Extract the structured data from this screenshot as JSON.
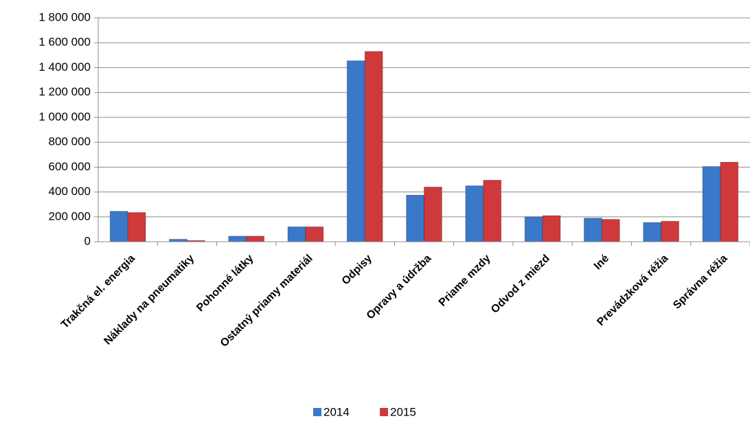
{
  "chart_data": {
    "type": "bar",
    "categories": [
      "Trakčná el. energia",
      "Náklady na pneumatiky",
      "Pohonné látky",
      "Ostatný priamy materiál",
      "Odpisy",
      "Opravy a údržba",
      "Priame mzdy",
      "Odvod z miezd",
      "Iné",
      "Prevádzková réžia",
      "Správna réžia"
    ],
    "series": [
      {
        "name": "2014",
        "color": "#3a78c9",
        "values": [
          245000,
          20000,
          45000,
          120000,
          1455000,
          375000,
          450000,
          200000,
          190000,
          155000,
          605000
        ]
      },
      {
        "name": "2015",
        "color": "#d0393b",
        "values": [
          235000,
          10000,
          45000,
          120000,
          1530000,
          440000,
          495000,
          210000,
          180000,
          165000,
          640000
        ]
      }
    ],
    "ylim": [
      0,
      1800000
    ],
    "yticks": [
      0,
      {
        "value": 200000,
        "label": "200 000"
      },
      {
        "value": 400000,
        "label": "400 000"
      },
      {
        "value": 600000,
        "label": "600 000"
      },
      {
        "value": 800000,
        "label": "800 000"
      },
      {
        "value": 1000000,
        "label": "1 000 000"
      },
      {
        "value": 1200000,
        "label": "1 200 000"
      },
      {
        "value": 1400000,
        "label": "1 400 000"
      },
      {
        "value": 1600000,
        "label": "1 600 000"
      },
      {
        "value": 1800000,
        "label": "1 800 000"
      }
    ],
    "grid": true,
    "legend": "bottom"
  }
}
